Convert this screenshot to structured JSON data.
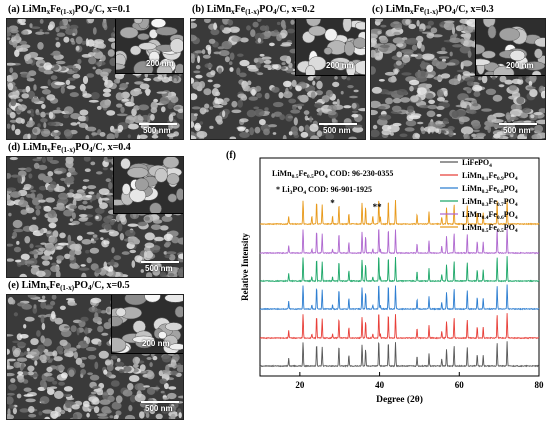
{
  "panels": [
    {
      "id": "a",
      "prefix": "(a) LiMn",
      "sx": "x",
      "mid": "Fe",
      "sy": "(1-x)",
      "suffix": "PO",
      "s4": "4",
      "tail": "/C, x=0.1",
      "inset_scale": "200 nm",
      "main_scale": "500 nm"
    },
    {
      "id": "b",
      "prefix": "(b) LiMn",
      "sx": "x",
      "mid": "Fe",
      "sy": "(1-x)",
      "suffix": "PO",
      "s4": "4",
      "tail": "/C, x=0.2",
      "inset_scale": "200 nm",
      "main_scale": "500 nm"
    },
    {
      "id": "c",
      "prefix": "(c) LiMn",
      "sx": "x",
      "mid": "Fe",
      "sy": "(1-x)",
      "suffix": "PO",
      "s4": "4",
      "tail": "/C, x=0.3",
      "inset_scale": "200 nm",
      "main_scale": "500 nm"
    },
    {
      "id": "d",
      "prefix": "(d) LiMn",
      "sx": "x",
      "mid": "Fe",
      "sy": "(1-x)",
      "suffix": "PO",
      "s4": "4",
      "tail": "/C, x=0.4",
      "inset_scale": "200 nm",
      "main_scale": "500 nm"
    },
    {
      "id": "e",
      "prefix": "(e) LiMn",
      "sx": "x",
      "mid": "Fe",
      "sy": "(1-x)",
      "suffix": "PO",
      "s4": "4",
      "tail": "/C, x=0.5",
      "inset_scale": "200 nm",
      "main_scale": "500 nm"
    }
  ],
  "chart_data": {
    "type": "line",
    "panel_label": "(f)",
    "xlabel": "Degree (2θ)",
    "ylabel": "Relative Intensity",
    "xlim": [
      10,
      80
    ],
    "xticks": [
      20,
      40,
      60,
      80
    ],
    "ref1": {
      "a": "LiMn",
      "a_sub": "0.5",
      "b": "Fe",
      "b_sub": "0.5",
      "c": "PO",
      "c_sub": "4",
      "d": " COD: 96-230-0355"
    },
    "ref2": {
      "star": "*",
      "a": " Li",
      "a_sub": "3",
      "b": "PO",
      "b_sub": "4",
      "c": " COD: 96-901-1925"
    },
    "star_marks": [
      "*",
      "**"
    ],
    "peaks_main": [
      17.2,
      20.8,
      24.2,
      25.6,
      29.8,
      32.3,
      35.6,
      36.5,
      39.8,
      42.2,
      44.0,
      49.4,
      52.4,
      55.6,
      56.8,
      58.7,
      62.0,
      64.5,
      66.0,
      69.5,
      72.0
    ],
    "peaks_impurity": [
      23.0,
      28.2,
      38.3,
      40.2
    ],
    "series": [
      {
        "name_a": "LiFePO",
        "name_a_sub": "4",
        "name_b": "",
        "name_b_sub": "",
        "color": "#595959"
      },
      {
        "name_a": "LiMn",
        "name_a_sub": "0.1",
        "name_b": "Fe",
        "name_b_sub": "0.9",
        "name_c": "PO",
        "name_c_sub": "4",
        "color": "#e8403a"
      },
      {
        "name_a": "LiMn",
        "name_a_sub": "0.2",
        "name_b": "Fe",
        "name_b_sub": "0.8",
        "name_c": "PO",
        "name_c_sub": "4",
        "color": "#2f7fd1"
      },
      {
        "name_a": "LiMn",
        "name_a_sub": "0.3",
        "name_b": "Fe",
        "name_b_sub": "0.7",
        "name_c": "PO",
        "name_c_sub": "4",
        "color": "#1fa86a"
      },
      {
        "name_a": "LiMn",
        "name_a_sub": "0.4",
        "name_b": "Fe",
        "name_b_sub": "0.6",
        "name_c": "PO",
        "name_c_sub": "4",
        "color": "#b06ad0"
      },
      {
        "name_a": "LiMn",
        "name_a_sub": "0.5",
        "name_b": "Fe",
        "name_b_sub": "0.5",
        "name_c": "PO",
        "name_c_sub": "4",
        "color": "#e89a1c"
      }
    ],
    "grid": false,
    "legend_position": "top-right"
  }
}
